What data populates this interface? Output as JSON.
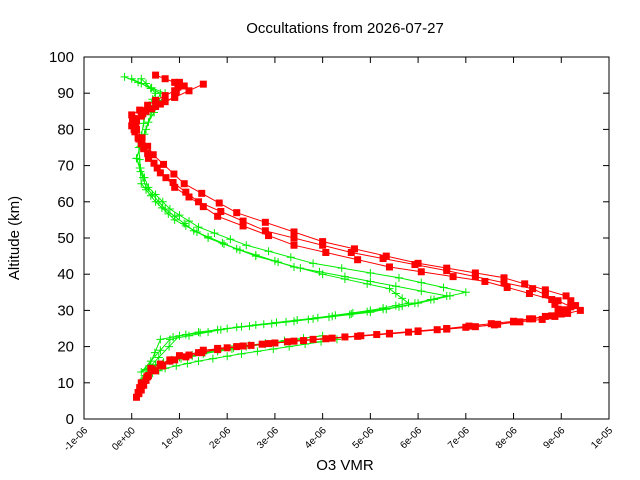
{
  "chart_data": {
    "type": "line",
    "title": "Occultations from 2026-07-27",
    "xlabel": "O3 VMR",
    "ylabel": "Altitude (km)",
    "xlim": [
      -1e-06,
      1e-05
    ],
    "ylim": [
      0,
      100
    ],
    "x_ticks": [
      {
        "value": -1e-06,
        "label": "-1e-06"
      },
      {
        "value": 0,
        "label": "0e+00"
      },
      {
        "value": 1e-06,
        "label": "1e-06"
      },
      {
        "value": 2e-06,
        "label": "2e-06"
      },
      {
        "value": 3e-06,
        "label": "3e-06"
      },
      {
        "value": 4e-06,
        "label": "4e-06"
      },
      {
        "value": 5e-06,
        "label": "5e-06"
      },
      {
        "value": 6e-06,
        "label": "6e-06"
      },
      {
        "value": 7e-06,
        "label": "7e-06"
      },
      {
        "value": 8e-06,
        "label": "8e-06"
      },
      {
        "value": 9e-06,
        "label": "9e-06"
      },
      {
        "value": 1e-05,
        "label": "1e-05"
      }
    ],
    "y_ticks": [
      {
        "value": 0,
        "label": "0"
      },
      {
        "value": 10,
        "label": "10"
      },
      {
        "value": 20,
        "label": "20"
      },
      {
        "value": 30,
        "label": "30"
      },
      {
        "value": 40,
        "label": "40"
      },
      {
        "value": 50,
        "label": "50"
      },
      {
        "value": 60,
        "label": "60"
      },
      {
        "value": 70,
        "label": "70"
      },
      {
        "value": 80,
        "label": "80"
      },
      {
        "value": 90,
        "label": "90"
      },
      {
        "value": 100,
        "label": "100"
      }
    ],
    "grid": false,
    "series": [
      {
        "color": "#00ee00",
        "marker": "plus",
        "profiles": [
          {
            "x": [
              4.3e-06,
              3.3e-06,
              2.3e-06,
              1.4e-06,
              7e-07,
              3e-07,
              2.5e-07,
              6e-07,
              1.4e-06,
              2.6e-06,
              3.9e-06,
              5e-06,
              5.8e-06,
              5.4e-06,
              4e-06,
              2.6e-06,
              1.6e-06,
              9e-07,
              5e-07,
              2e-07,
              1.5e-07,
              3e-07,
              5e-07,
              2e-07
            ],
            "y": [
              22,
              20,
              18,
              16,
              14,
              12,
              11,
              22,
              24,
              26,
              28,
              30,
              32,
              36,
              40,
              45,
              50,
              55,
              60,
              65,
              75,
              85,
              90,
              94
            ]
          },
          {
            "x": [
              4e-06,
              2.8e-06,
              1.8e-06,
              1e-06,
              5e-07,
              2e-07,
              8e-07,
              2e-06,
              3.4e-06,
              4.6e-06,
              5.6e-06,
              6.6e-06,
              5e-06,
              3.4e-06,
              2.2e-06,
              1.3e-06,
              7e-07,
              3e-07,
              1e-07,
              4e-07,
              6e-07,
              0.0
            ],
            "y": [
              23,
              21,
              19,
              17,
              15,
              13,
              22,
              25,
              27,
              29,
              31,
              34,
              38,
              42,
              47,
              52,
              58,
              64,
              72,
              84,
              90,
              94
            ]
          },
          {
            "x": [
              3.6e-06,
              2.4e-06,
              1.5e-06,
              8e-07,
              3.5e-07,
              1e-06,
              2.3e-06,
              3.7e-06,
              5e-06,
              6e-06,
              7e-06,
              5.6e-06,
              3.8e-06,
              2.4e-06,
              1.4e-06,
              8e-07,
              3.5e-07,
              1e-07,
              3.5e-07,
              7e-07,
              -1.5e-07
            ],
            "y": [
              22,
              20,
              18,
              16,
              14,
              23,
              25.5,
              27.5,
              29.5,
              32,
              35,
              39,
              43,
              48,
              53,
              58,
              64,
              72,
              82,
              90,
              94.5
            ]
          }
        ]
      },
      {
        "color": "#ff0000",
        "marker": "filled-square",
        "profiles": [
          {
            "x": [
              1e-07,
              2e-07,
              6e-07,
              1.5e-06,
              3e-06,
              4.8e-06,
              6.6e-06,
              8e-06,
              9e-06,
              8.8e-06,
              7.4e-06,
              5.4e-06,
              3.4e-06,
              1.8e-06,
              9e-07,
              3.5e-07,
              5e-08,
              0.0,
              5e-07,
              1.1e-06,
              5e-07
            ],
            "y": [
              6,
              10,
              15,
              19,
              21,
              23,
              25,
              27,
              29,
              33,
              38,
              42,
              48,
              56,
              64,
              72,
              80,
              84,
              88,
              92,
              95
            ]
          },
          {
            "x": [
              2e-07,
              3.5e-07,
              8e-07,
              1.8e-06,
              3.4e-06,
              5.4e-06,
              7.2e-06,
              8.6e-06,
              9.4e-06,
              9.1e-06,
              7.8e-06,
              6e-06,
              4e-06,
              2.2e-06,
              1.1e-06,
              4.5e-07,
              1e-07,
              5e-08,
              6e-07,
              1.5e-06
            ],
            "y": [
              8,
              12,
              16,
              19.5,
              21.5,
              23.5,
              25.5,
              27.5,
              30,
              34,
              39,
              43,
              49,
              57,
              65,
              73,
              80,
              83,
              87,
              92.5
            ]
          },
          {
            "x": [
              1.5e-07,
              4e-07,
              1e-06,
              2.2e-06,
              3.8e-06,
              5.8e-06,
              7.6e-06,
              8.8e-06,
              9.2e-06,
              8.4e-06,
              6.6e-06,
              4.6e-06,
              2.8e-06,
              1.4e-06,
              6e-07,
              2e-07,
              0.0,
              3e-07,
              9e-07,
              1e-06
            ],
            "y": [
              7,
              14,
              17.5,
              20,
              22,
              24,
              26,
              28.5,
              31,
              36,
              41,
              46,
              52,
              60,
              68,
              76,
              81,
              85,
              89,
              93
            ]
          }
        ]
      }
    ]
  }
}
